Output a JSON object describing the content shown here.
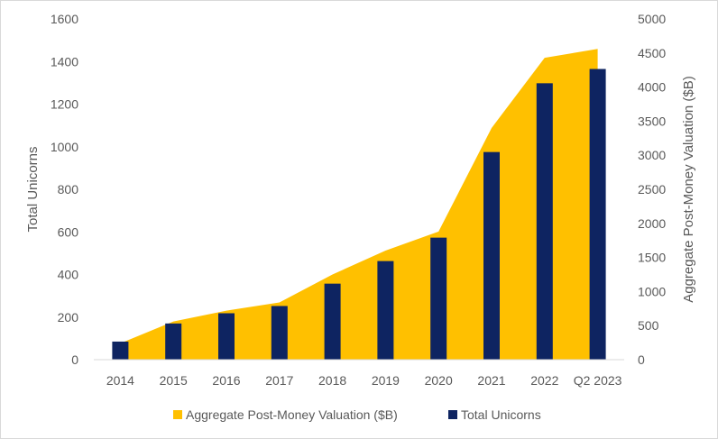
{
  "chart_data": {
    "type": "bar",
    "categories": [
      "2014",
      "2015",
      "2016",
      "2017",
      "2018",
      "2019",
      "2020",
      "2021",
      "2022",
      "Q2 2023"
    ],
    "series": [
      {
        "name": "Aggregate Post-Money Valuation ($B)",
        "type": "area",
        "axis": "right",
        "color": "#FFC000",
        "values": [
          240,
          560,
          720,
          840,
          1250,
          1600,
          1880,
          3400,
          4430,
          4560
        ]
      },
      {
        "name": "Total Unicorns",
        "type": "bar",
        "axis": "left",
        "color": "#0E2461",
        "values": [
          85,
          170,
          218,
          252,
          357,
          463,
          573,
          975,
          1298,
          1365
        ]
      }
    ],
    "ylabel": "Total Unicorns",
    "y2label": "Aggregate Post-Money Valuation ($B)",
    "ylim": [
      0,
      1600
    ],
    "y2lim": [
      0,
      5000
    ],
    "yticks": [
      "0",
      "200",
      "400",
      "600",
      "800",
      "1000",
      "1200",
      "1400",
      "1600"
    ],
    "y2ticks": [
      "0",
      "500",
      "1000",
      "1500",
      "2000",
      "2500",
      "3000",
      "3500",
      "4000",
      "4500",
      "5000"
    ],
    "grid": false,
    "legend_position": "bottom"
  }
}
